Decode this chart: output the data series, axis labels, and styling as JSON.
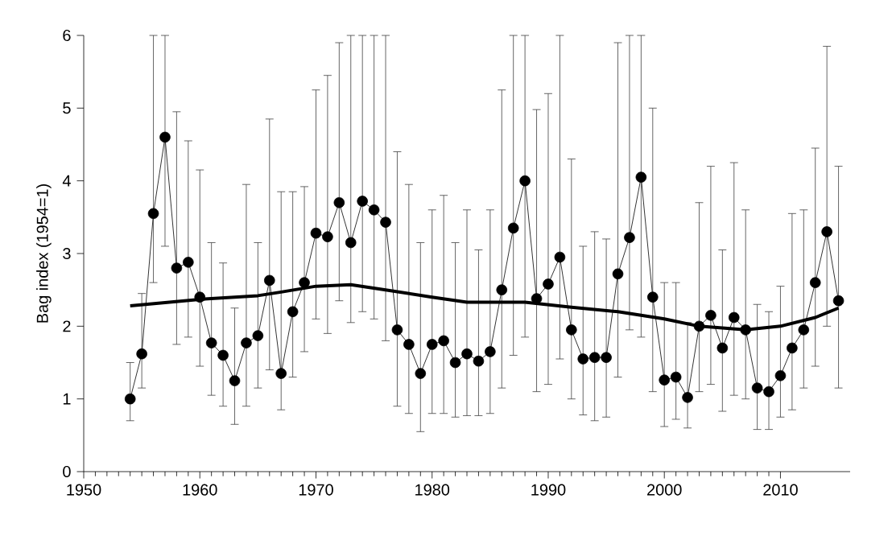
{
  "chart_data": {
    "type": "line",
    "ylabel": "Bag index (1954=1)",
    "xlim": [
      1950,
      2016
    ],
    "ylim": [
      0,
      6
    ],
    "xticks": [
      1950,
      1960,
      1970,
      1980,
      1990,
      2000,
      2010
    ],
    "yticks": [
      0,
      1,
      2,
      3,
      4,
      5,
      6
    ],
    "grid": false,
    "series": [
      {
        "color": "#000000",
        "marker": "circle",
        "line_style": "solid",
        "x": [
          1954,
          1955,
          1956,
          1957,
          1958,
          1959,
          1960,
          1961,
          1962,
          1963,
          1964,
          1965,
          1966,
          1967,
          1968,
          1969,
          1970,
          1971,
          1972,
          1973,
          1974,
          1975,
          1976,
          1977,
          1978,
          1979,
          1980,
          1981,
          1982,
          1983,
          1984,
          1985,
          1986,
          1987,
          1988,
          1989,
          1990,
          1991,
          1992,
          1993,
          1994,
          1995,
          1996,
          1997,
          1998,
          1999,
          2000,
          2001,
          2002,
          2003,
          2004,
          2005,
          2006,
          2007,
          2008,
          2009,
          2010,
          2011,
          2012,
          2013,
          2014,
          2015
        ],
        "values": [
          1.0,
          1.62,
          3.55,
          4.6,
          2.8,
          2.88,
          2.4,
          1.77,
          1.6,
          1.25,
          1.77,
          1.87,
          2.63,
          1.35,
          2.2,
          2.6,
          3.28,
          3.23,
          3.7,
          3.15,
          3.72,
          3.6,
          3.43,
          1.95,
          1.75,
          1.35,
          1.75,
          1.8,
          1.5,
          1.62,
          1.52,
          1.65,
          2.5,
          3.35,
          4.0,
          2.38,
          2.58,
          2.95,
          1.95,
          1.55,
          1.57,
          1.57,
          2.72,
          3.22,
          4.05,
          2.4,
          1.26,
          1.3,
          1.02,
          2.0,
          2.15,
          1.7,
          2.12,
          1.95,
          1.15,
          1.1,
          1.32,
          1.7,
          1.95,
          2.6,
          3.3,
          2.35
        ],
        "errors": [
          [
            0.7,
            1.5
          ],
          [
            1.15,
            2.45
          ],
          [
            2.6,
            6
          ],
          [
            3.1,
            6
          ],
          [
            1.75,
            4.95
          ],
          [
            1.85,
            4.55
          ],
          [
            1.45,
            4.15
          ],
          [
            1.05,
            3.15
          ],
          [
            0.9,
            2.87
          ],
          [
            0.65,
            2.25
          ],
          [
            0.9,
            3.95
          ],
          [
            1.15,
            3.15
          ],
          [
            1.4,
            4.85
          ],
          [
            0.85,
            3.85
          ],
          [
            1.3,
            3.85
          ],
          [
            1.65,
            3.92
          ],
          [
            2.1,
            5.25
          ],
          [
            1.9,
            5.45
          ],
          [
            2.35,
            5.9
          ],
          [
            2.05,
            6
          ],
          [
            2.2,
            6
          ],
          [
            2.1,
            6
          ],
          [
            1.8,
            6
          ],
          [
            0.9,
            4.4
          ],
          [
            0.8,
            3.95
          ],
          [
            0.55,
            3.15
          ],
          [
            0.8,
            3.6
          ],
          [
            0.8,
            3.8
          ],
          [
            0.75,
            3.15
          ],
          [
            0.77,
            3.6
          ],
          [
            0.77,
            3.05
          ],
          [
            0.8,
            3.6
          ],
          [
            1.15,
            5.25
          ],
          [
            1.6,
            6
          ],
          [
            1.85,
            6
          ],
          [
            1.1,
            4.98
          ],
          [
            1.2,
            5.2
          ],
          [
            1.55,
            6
          ],
          [
            1.0,
            4.3
          ],
          [
            0.78,
            3.1
          ],
          [
            0.7,
            3.3
          ],
          [
            0.75,
            3.2
          ],
          [
            1.3,
            5.9
          ],
          [
            1.95,
            6
          ],
          [
            1.85,
            6
          ],
          [
            1.1,
            5.0
          ],
          [
            0.62,
            2.6
          ],
          [
            0.72,
            2.6
          ],
          [
            0.6,
            2.05
          ],
          [
            1.1,
            3.7
          ],
          [
            1.2,
            4.2
          ],
          [
            0.83,
            3.05
          ],
          [
            1.05,
            4.25
          ],
          [
            1.0,
            3.6
          ],
          [
            0.58,
            2.3
          ],
          [
            0.58,
            2.2
          ],
          [
            0.75,
            2.55
          ],
          [
            0.85,
            3.55
          ],
          [
            1.15,
            3.6
          ],
          [
            1.45,
            4.45
          ],
          [
            2.0,
            5.85
          ],
          [
            1.15,
            4.2
          ]
        ]
      },
      {
        "color": "#000000",
        "marker": "none",
        "line_style": "solid",
        "x": [
          1954,
          1960,
          1965,
          1967,
          1970,
          1973,
          1976,
          1980,
          1983,
          1988,
          1992,
          1996,
          2000,
          2003,
          2007,
          2010,
          2013,
          2015
        ],
        "values": [
          2.28,
          2.37,
          2.42,
          2.47,
          2.55,
          2.57,
          2.5,
          2.4,
          2.33,
          2.33,
          2.26,
          2.2,
          2.1,
          2.0,
          1.95,
          2.0,
          2.12,
          2.25
        ]
      }
    ]
  }
}
